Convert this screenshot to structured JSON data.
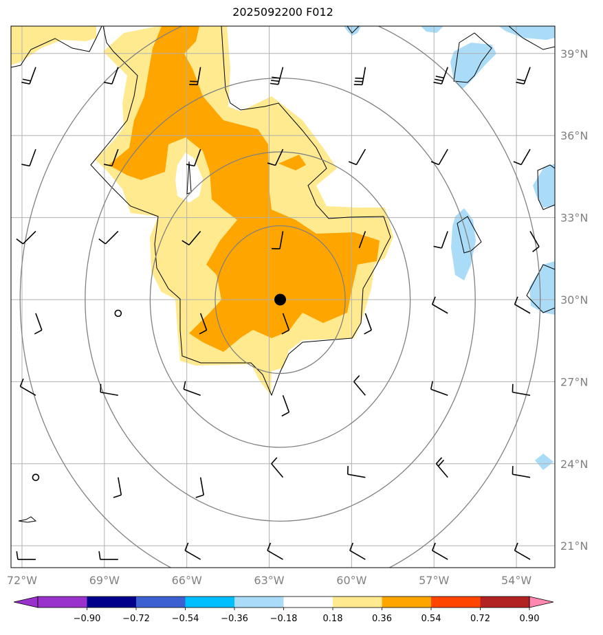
{
  "title": "2025092200 F012",
  "map": {
    "lon_range": [
      -72.4,
      -52.6
    ],
    "lat_range": [
      20.2,
      40.0
    ],
    "lon_ticks": [
      -72,
      -69,
      -66,
      -63,
      -60,
      -57,
      -54
    ],
    "lon_tick_labels": [
      "72°W",
      "69°W",
      "66°W",
      "63°W",
      "60°W",
      "57°W",
      "54°W"
    ],
    "lat_ticks": [
      21,
      24,
      27,
      30,
      33,
      36,
      39
    ],
    "lat_tick_labels": [
      "21°N",
      "24°N",
      "27°N",
      "30°N",
      "33°N",
      "36°N",
      "39°N"
    ],
    "storm_center": {
      "lon": -62.6,
      "lat": 30.0
    },
    "range_rings_deg": [
      2.7,
      5.4,
      8.1,
      10.8
    ],
    "colors": {
      "positive_weak": "#ffea8f",
      "positive_mod": "#ffa500",
      "negative_weak": "#aadcf8",
      "grid": "#b0b0b0",
      "ring": "#808080"
    }
  },
  "colorbar": {
    "levels": [
      -0.9,
      -0.72,
      -0.54,
      -0.36,
      -0.18,
      0.18,
      0.36,
      0.54,
      0.72,
      0.9
    ],
    "tick_labels": [
      "−0.90",
      "−0.72",
      "−0.54",
      "−0.36",
      "−0.18",
      "0.18",
      "0.36",
      "0.54",
      "0.72",
      "0.90"
    ],
    "colors": [
      "#9932cc",
      "#00008b",
      "#3c5fd2",
      "#00bfff",
      "#aadcf8",
      "#ffffff",
      "#ffea8f",
      "#ffa500",
      "#ff4500",
      "#b22222",
      "#ff88b0"
    ]
  }
}
